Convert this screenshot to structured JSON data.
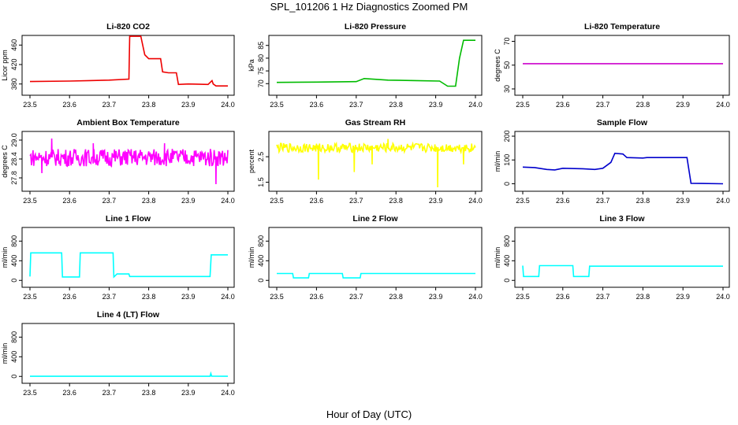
{
  "figure": {
    "title": "SPL_101206  1 Hz Diagnostics Zoomed PM",
    "xlabel": "Hour of Day (UTC)"
  },
  "chart_data": [
    {
      "type": "line",
      "title": "Li-820 CO2",
      "ylabel": "Licor ppm",
      "color": "#ee0000",
      "xlim": [
        23.5,
        24.0
      ],
      "ylim": [
        365,
        475
      ],
      "xticks": [
        "23.5",
        "23.6",
        "23.7",
        "23.8",
        "23.9",
        "24.0"
      ],
      "yticks": [
        380,
        420,
        460
      ],
      "series": [
        {
          "x": [
            23.5,
            23.6,
            23.65,
            23.7,
            23.75,
            23.752,
            23.78,
            23.79,
            23.8,
            23.83,
            23.835,
            23.85,
            23.87,
            23.875,
            23.9,
            23.95,
            23.96,
            23.963,
            23.97,
            24.0
          ],
          "y": [
            385,
            386,
            387,
            388,
            390,
            478,
            478,
            440,
            432,
            432,
            405,
            403,
            403,
            379,
            380,
            379,
            387,
            380,
            376,
            376
          ]
        }
      ]
    },
    {
      "type": "line",
      "title": "Li-820 Pressure",
      "ylabel": "kPa",
      "color": "#00bb00",
      "xlim": [
        23.5,
        24.0
      ],
      "ylim": [
        67,
        88
      ],
      "xticks": [
        "23.5",
        "23.6",
        "23.7",
        "23.8",
        "23.9",
        "24.0"
      ],
      "yticks": [
        70,
        75,
        80,
        85
      ],
      "series": [
        {
          "x": [
            23.5,
            23.6,
            23.7,
            23.72,
            23.75,
            23.78,
            23.85,
            23.91,
            23.93,
            23.95,
            23.96,
            23.97,
            23.98,
            24.0
          ],
          "y": [
            70.5,
            70.6,
            70.8,
            72.0,
            71.7,
            71.4,
            71.2,
            71.0,
            69.0,
            69.0,
            80.0,
            87.0,
            87.0,
            87.0
          ]
        }
      ]
    },
    {
      "type": "line",
      "title": "Li-820 Temperature",
      "ylabel": "degrees C",
      "color": "#cc00cc",
      "xlim": [
        23.5,
        24.0
      ],
      "ylim": [
        28,
        73
      ],
      "xticks": [
        "23.5",
        "23.6",
        "23.7",
        "23.8",
        "23.9",
        "24.0"
      ],
      "yticks": [
        30,
        50,
        70
      ],
      "series": [
        {
          "x": [
            23.5,
            24.0
          ],
          "y": [
            51.2,
            51.2
          ]
        }
      ]
    },
    {
      "type": "line",
      "title": "Ambient Box Temperature",
      "ylabel": "degrees C",
      "color": "#ff00ff",
      "xlim": [
        23.5,
        24.0
      ],
      "ylim": [
        27.5,
        29.2
      ],
      "xticks": [
        "23.5",
        "23.6",
        "23.7",
        "23.8",
        "23.9",
        "24.0"
      ],
      "yticks": [
        "27.8",
        "28.4",
        "29.0"
      ],
      "series": [
        {
          "x": [
            23.5,
            24.0
          ],
          "y": [
            28.45,
            28.45
          ],
          "noise": 0.28,
          "spikes": [
            [
              23.555,
              29.05
            ],
            [
              23.97,
              27.6
            ],
            [
              23.66,
              28.9
            ],
            [
              23.84,
              28.9
            ],
            [
              23.53,
              27.95
            ]
          ]
        }
      ]
    },
    {
      "type": "line",
      "title": "Gas Stream RH",
      "ylabel": "percent",
      "color": "#ffff00",
      "xlim": [
        23.5,
        24.0
      ],
      "ylim": [
        1.3,
        3.4
      ],
      "xticks": [
        "23.5",
        "23.6",
        "23.7",
        "23.8",
        "23.9",
        "24.0"
      ],
      "yticks": [
        "1.5",
        "2.5"
      ],
      "series": [
        {
          "x": [
            23.5,
            24.0
          ],
          "y": [
            2.85,
            2.85
          ],
          "noise": 0.18,
          "spikes": [
            [
              23.605,
              1.6
            ],
            [
              23.695,
              1.9
            ],
            [
              23.74,
              2.2
            ],
            [
              23.905,
              1.3
            ],
            [
              23.97,
              2.2
            ],
            [
              23.78,
              3.2
            ]
          ]
        }
      ]
    },
    {
      "type": "line",
      "title": "Sample Flow",
      "ylabel": "ml/min",
      "color": "#0000cc",
      "xlim": [
        23.5,
        24.0
      ],
      "ylim": [
        -15,
        210
      ],
      "xticks": [
        "23.5",
        "23.6",
        "23.7",
        "23.8",
        "23.9",
        "24.0"
      ],
      "yticks": [
        0,
        100,
        200
      ],
      "series": [
        {
          "x": [
            23.5,
            23.53,
            23.56,
            23.58,
            23.6,
            23.65,
            23.68,
            23.7,
            23.72,
            23.73,
            23.75,
            23.76,
            23.8,
            23.81,
            23.85,
            23.91,
            23.92,
            24.0
          ],
          "y": [
            70,
            68,
            60,
            58,
            65,
            63,
            60,
            65,
            90,
            128,
            125,
            110,
            108,
            110,
            110,
            110,
            2,
            0
          ]
        }
      ]
    },
    {
      "type": "line",
      "title": "Line 1 Flow",
      "ylabel": "ml/min",
      "color": "#00ffff",
      "xlim": [
        23.5,
        24.0
      ],
      "ylim": [
        -60,
        1030
      ],
      "xticks": [
        "23.5",
        "23.6",
        "23.7",
        "23.8",
        "23.9",
        "24.0"
      ],
      "yticks": [
        0,
        400,
        800
      ],
      "series": [
        {
          "x": [
            23.5,
            23.502,
            23.58,
            23.582,
            23.625,
            23.627,
            23.71,
            23.712,
            23.72,
            23.75,
            23.752,
            23.955,
            23.958,
            24.0
          ],
          "y": [
            80,
            560,
            560,
            70,
            70,
            560,
            560,
            70,
            130,
            130,
            80,
            80,
            520,
            520
          ]
        }
      ]
    },
    {
      "type": "line",
      "title": "Line 2 Flow",
      "ylabel": "ml/min",
      "color": "#00ffff",
      "xlim": [
        23.5,
        24.0
      ],
      "ylim": [
        -60,
        1030
      ],
      "xticks": [
        "23.5",
        "23.6",
        "23.7",
        "23.8",
        "23.9",
        "24.0"
      ],
      "yticks": [
        0,
        400,
        800
      ],
      "series": [
        {
          "x": [
            23.5,
            23.54,
            23.542,
            23.58,
            23.582,
            23.665,
            23.667,
            23.71,
            23.712,
            24.0
          ],
          "y": [
            140,
            140,
            50,
            50,
            140,
            140,
            50,
            50,
            140,
            140
          ]
        }
      ]
    },
    {
      "type": "line",
      "title": "Line 3 Flow",
      "ylabel": "ml/min",
      "color": "#00ffff",
      "xlim": [
        23.5,
        24.0
      ],
      "ylim": [
        -60,
        1030
      ],
      "xticks": [
        "23.5",
        "23.6",
        "23.7",
        "23.8",
        "23.9",
        "24.0"
      ],
      "yticks": [
        0,
        400,
        800
      ],
      "series": [
        {
          "x": [
            23.5,
            23.502,
            23.54,
            23.542,
            23.625,
            23.627,
            23.665,
            23.667,
            24.0
          ],
          "y": [
            300,
            80,
            80,
            300,
            300,
            80,
            80,
            290,
            290
          ]
        }
      ]
    },
    {
      "type": "line",
      "title": "Line 4 (LT) Flow",
      "ylabel": "ml/min",
      "color": "#00ffff",
      "xlim": [
        23.5,
        24.0
      ],
      "ylim": [
        -60,
        1030
      ],
      "xticks": [
        "23.5",
        "23.6",
        "23.7",
        "23.8",
        "23.9",
        "24.0"
      ],
      "yticks": [
        0,
        400,
        800
      ],
      "series": [
        {
          "x": [
            23.5,
            23.955,
            23.957,
            23.959,
            24.0
          ],
          "y": [
            2,
            2,
            60,
            5,
            2
          ]
        }
      ]
    }
  ]
}
